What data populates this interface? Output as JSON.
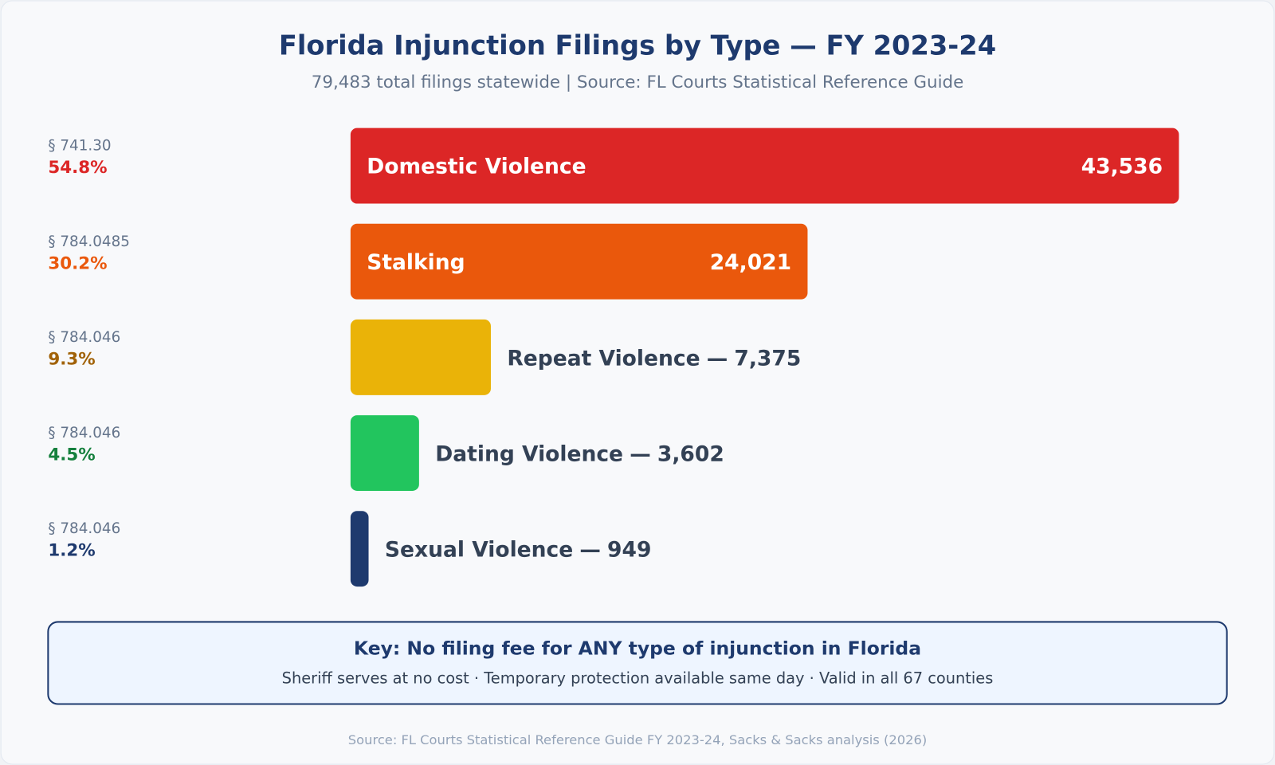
{
  "chart_data": {
    "type": "bar",
    "orientation": "horizontal",
    "title": "Florida Injunction Filings by Type — FY 2023-24",
    "subtitle": "79,483 total filings statewide | Source: FL Courts Statistical Reference Guide",
    "categories": [
      "Domestic Violence",
      "Stalking",
      "Repeat Violence",
      "Dating Violence",
      "Sexual Violence"
    ],
    "values": [
      43536,
      24021,
      7375,
      3602,
      949
    ],
    "value_labels": [
      "43,536",
      "24,021",
      "7,375",
      "3,602",
      "949"
    ],
    "label_separator": "—",
    "colors": [
      "#dc2626",
      "#ea580c",
      "#eab308",
      "#22c55e",
      "#1e3a6e"
    ],
    "statutes": [
      "§ 741.30",
      "§ 784.0485",
      "§ 784.046",
      "§ 784.046",
      "§ 784.046"
    ],
    "percent": [
      54.8,
      30.2,
      9.3,
      4.5,
      1.2
    ],
    "percent_labels": [
      "54.8%",
      "30.2%",
      "9.3%",
      "4.5%",
      "1.2%"
    ],
    "percent_colors": [
      "#dc2626",
      "#ea580c",
      "#a16207",
      "#15803d",
      "#1e3a6e"
    ],
    "xlim": [
      0,
      43536
    ],
    "key_title": "Key: No filing fee for ANY type of injunction in Florida",
    "key_text": "Sheriff serves at no cost · Temporary protection available same day · Valid in all 67 counties",
    "footer": "Source: FL Courts Statistical Reference Guide FY 2023-24, Sacks & Sacks analysis (2026)"
  }
}
